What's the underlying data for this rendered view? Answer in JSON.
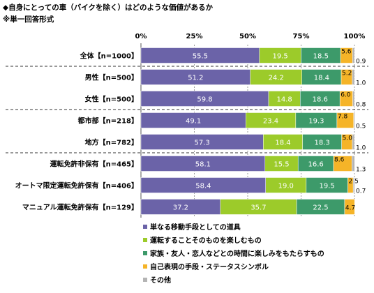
{
  "title": "◆自身にとっての車（バイクを除く）はどのような価値があるか",
  "subtitle": "※単一回答形式",
  "chart_data": {
    "type": "bar",
    "stacked": true,
    "orientation": "horizontal",
    "x_ticks": [
      "0%",
      "25%",
      "50%",
      "75%",
      "100%"
    ],
    "xlim": [
      0,
      100
    ],
    "categories": [
      "全体【n=1000】",
      "男性【n=500】",
      "女性【n=500】",
      "都市部【n=218】",
      "地方【n=782】",
      "運転免許非保有【n=465】",
      "オートマ限定運転免許保有【n=406】",
      "マニュアル運転免許保有【n=129】"
    ],
    "series": [
      {
        "name": "単なる移動手段としての道具",
        "color": "#6b63a8",
        "values": [
          55.5,
          51.2,
          59.8,
          49.1,
          57.3,
          58.1,
          58.4,
          37.2
        ]
      },
      {
        "name": "運転することそのものを楽しむもの",
        "color": "#9ccb2a",
        "values": [
          19.5,
          24.2,
          14.8,
          23.4,
          18.4,
          15.5,
          19.0,
          35.7
        ]
      },
      {
        "name": "家族・友人・恋人などとの時間に楽しみをもたらすもの",
        "color": "#3d9a6a",
        "values": [
          18.5,
          18.4,
          18.6,
          19.3,
          18.3,
          16.6,
          19.5,
          22.5
        ]
      },
      {
        "name": "自己表現の手段・ステータスシンボル",
        "color": "#f5b428",
        "values": [
          5.6,
          5.2,
          6.0,
          7.8,
          5.0,
          8.6,
          2.5,
          4.7
        ]
      },
      {
        "name": "その他",
        "color": "#b4b4b4",
        "values": [
          0.9,
          1.0,
          0.8,
          0.5,
          1.0,
          1.3,
          0.7,
          0.0
        ]
      }
    ],
    "value_labels": [
      [
        "55.5",
        "19.5",
        "18.5",
        "5.6",
        "0.9"
      ],
      [
        "51.2",
        "24.2",
        "18.4",
        "5.2",
        "1.0"
      ],
      [
        "59.8",
        "14.8",
        "18.6",
        "6.0",
        "0.8"
      ],
      [
        "49.1",
        "23.4",
        "19.3",
        "7.8",
        "0.5"
      ],
      [
        "57.3",
        "18.4",
        "18.3",
        "5.0",
        "1.0"
      ],
      [
        "58.1",
        "15.5",
        "16.6",
        "8.6",
        "1.3"
      ],
      [
        "58.4",
        "19.0",
        "19.5",
        "2.5",
        "0.7"
      ],
      [
        "37.2",
        "35.7",
        "22.5",
        "4.7",
        ""
      ]
    ],
    "group_dividers_after": [
      0,
      2,
      4
    ],
    "legend_position": "bottom"
  }
}
